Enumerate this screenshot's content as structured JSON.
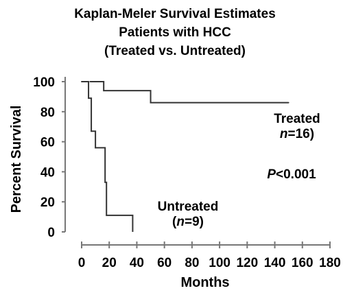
{
  "chart_data": {
    "type": "line",
    "title_lines": [
      "Kaplan-Meler Survival Estimates",
      "Patients with HCC",
      "(Treated vs. Untreated)"
    ],
    "xlabel": "Months",
    "ylabel": "Percent Survival",
    "xlim": [
      0,
      180
    ],
    "ylim": [
      0,
      100
    ],
    "xticks": [
      "0",
      "20",
      "40",
      "60",
      "80",
      "100",
      "120",
      "140",
      "160",
      "180"
    ],
    "yticks": [
      "0",
      "20",
      "40",
      "60",
      "80",
      "100"
    ],
    "grid": false,
    "step": true,
    "series": [
      {
        "name": "Treated",
        "label_line1": "Treated",
        "label_n_italic": "n",
        "label_n_rest": "=16)",
        "color": "#333333",
        "x": [
          0,
          16,
          50,
          150
        ],
        "y": [
          100,
          94,
          86,
          86
        ]
      },
      {
        "name": "Untreated",
        "label_line1": "Untreated",
        "label_n_open": "(",
        "label_n_italic": "n",
        "label_n_rest": "=9)",
        "color": "#333333",
        "x": [
          0,
          2,
          5,
          7,
          10,
          16,
          17,
          18,
          37
        ],
        "y": [
          100,
          100,
          89,
          67,
          56,
          56,
          33,
          11,
          11
        ],
        "end_drop_to": 0
      }
    ],
    "annotations": {
      "p_italic": "P",
      "p_rest": "<0.001"
    }
  }
}
